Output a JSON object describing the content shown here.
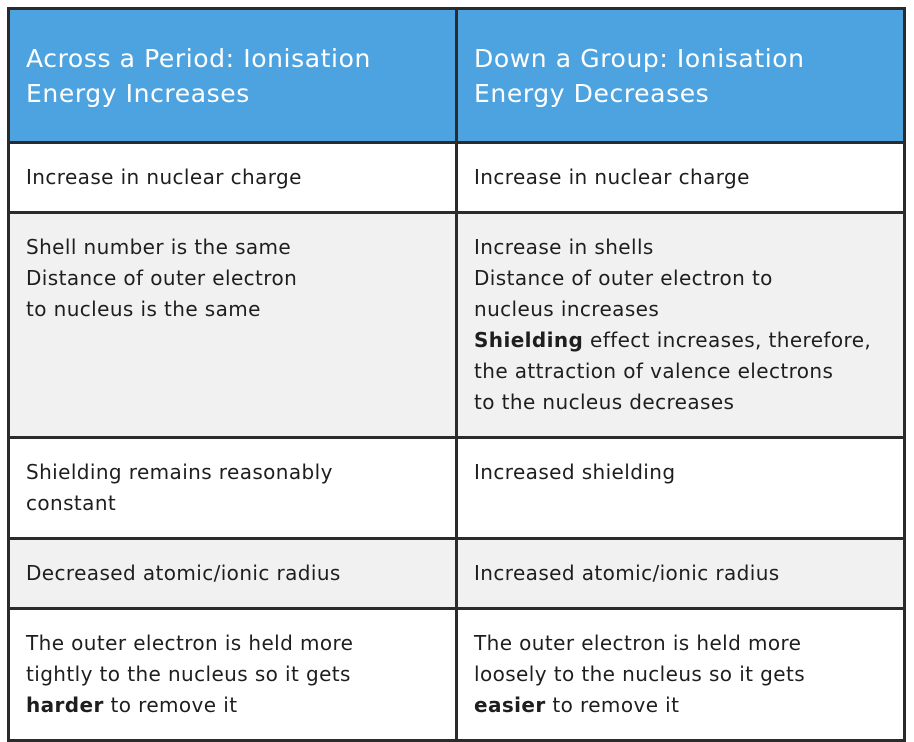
{
  "header": {
    "col1_line1": "Across a Period: Ionisation",
    "col1_line2": "Energy Increases",
    "col2_line1": "Down a Group: Ionisation",
    "col2_line2": "Energy Decreases"
  },
  "rows": [
    {
      "left": [
        "Increase in nuclear charge"
      ],
      "right": [
        "Increase in nuclear charge"
      ]
    },
    {
      "left": [
        "Shell number is the same",
        "Distance of outer electron",
        "to nucleus is the same"
      ],
      "right_l1": "Increase in shells",
      "right_l2": "Distance of outer electron to",
      "right_l3": "nucleus increases",
      "right_l4_bold": "Shielding",
      "right_l4_rest": " effect increases, therefore,",
      "right_l5": "the attraction of valence electrons",
      "right_l6": "to the nucleus decreases"
    },
    {
      "left": [
        "Shielding remains reasonably",
        "constant"
      ],
      "right": [
        "Increased shielding"
      ]
    },
    {
      "left": [
        "Decreased atomic/ionic radius"
      ],
      "right": [
        "Increased atomic/ionic radius"
      ]
    },
    {
      "left_l1": "The outer electron is held more",
      "left_l2": "tightly to the nucleus so it gets",
      "left_l3_bold": "harder",
      "left_l3_rest": " to remove it",
      "right_l1": "The outer electron is held more",
      "right_l2": "loosely to the nucleus so it gets",
      "right_l3_bold": "easier",
      "right_l3_rest": " to remove it"
    }
  ]
}
